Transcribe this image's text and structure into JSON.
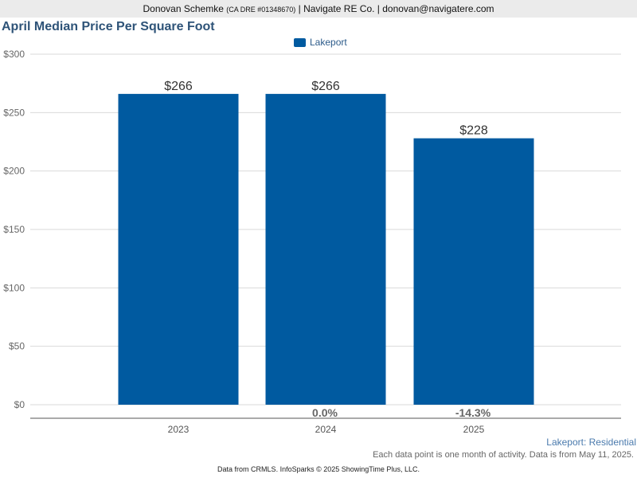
{
  "header": {
    "name": "Donovan Schemke",
    "license": "(CA DRE #01348670)",
    "rest": "| Navigate RE Co. | donovan@navigatere.com"
  },
  "colors": {
    "bar": "#005aa0",
    "title": "#2e5378",
    "header_bg": "#ebebeb"
  },
  "chart_data": {
    "type": "bar",
    "title": "April Median Price Per Square Foot",
    "categories": [
      "2023",
      "2024",
      "2025"
    ],
    "series": [
      {
        "name": "Lakeport",
        "values": [
          266,
          266,
          228
        ]
      }
    ],
    "value_labels": [
      "$266",
      "$266",
      "$228"
    ],
    "change_labels": [
      "",
      "0.0%",
      "-14.3%"
    ],
    "ylim": [
      0,
      300
    ],
    "yticks": [
      0,
      50,
      100,
      150,
      200,
      250,
      300
    ],
    "ytick_labels": [
      "$0",
      "$50",
      "$100",
      "$150",
      "$200",
      "$250",
      "$300"
    ],
    "grid": true,
    "legend_position": "top-center"
  },
  "subtitle_right": "Lakeport: Residential",
  "footnote": "Each data point is one month of activity. Data is from May 11, 2025.",
  "footer": "Data from CRMLS. InfoSparks © 2025 ShowingTime Plus, LLC."
}
